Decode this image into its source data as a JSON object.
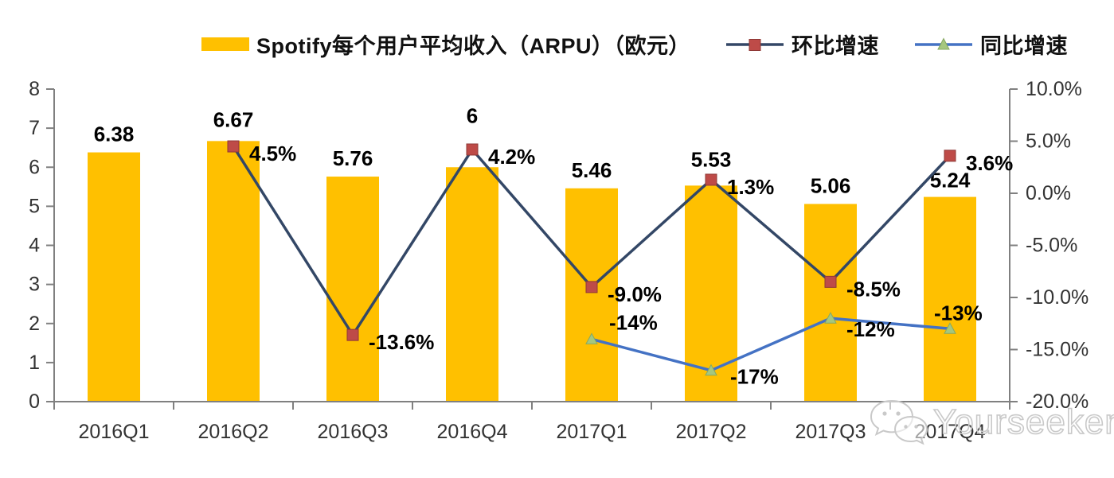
{
  "legend": {
    "bars_label": "Spotify每个用户平均收入（ARPU）（欧元）",
    "qoq_label": "环比增速",
    "yoy_label": "同比增速"
  },
  "watermark": {
    "text": "Yourseeker",
    "icon": "wechat-icon"
  },
  "colors": {
    "bar": "#FFC000",
    "qoq_line": "#334766",
    "qoq_marker": "#BE4B48",
    "yoy_line": "#4472C4",
    "yoy_marker": "#A5C77F",
    "axis": "#808080",
    "tick_text": "#333333",
    "data_label": "#000000"
  },
  "chart_data": {
    "type": "bar",
    "subtype": "combo-bar-line",
    "title": "",
    "categories": [
      "2016Q1",
      "2016Q2",
      "2016Q3",
      "2016Q4",
      "2017Q1",
      "2017Q2",
      "2017Q3",
      "2017Q4"
    ],
    "series": [
      {
        "name": "Spotify每个用户平均收入（ARPU）（欧元）",
        "type": "bar",
        "axis": "left",
        "color": "#FFC000",
        "values": [
          6.38,
          6.67,
          5.76,
          6,
          5.46,
          5.53,
          5.06,
          5.24
        ],
        "labels": [
          "6.38",
          "6.67",
          "5.76",
          "6",
          "5.46",
          "5.53",
          "5.06",
          "5.24"
        ]
      },
      {
        "name": "环比增速",
        "type": "line",
        "axis": "right",
        "marker": "square",
        "line_color": "#334766",
        "marker_color": "#BE4B48",
        "values": [
          null,
          4.5,
          -13.6,
          4.2,
          -9.0,
          1.3,
          -8.5,
          3.6
        ],
        "labels": [
          null,
          "4.5%",
          "-13.6%",
          "4.2%",
          "-9.0%",
          "1.3%",
          "-8.5%",
          "3.6%"
        ]
      },
      {
        "name": "同比增速",
        "type": "line",
        "axis": "right",
        "marker": "triangle",
        "line_color": "#4472C4",
        "marker_color": "#A5C77F",
        "values": [
          null,
          null,
          null,
          null,
          -14,
          -17,
          -12,
          -13
        ],
        "labels": [
          null,
          null,
          null,
          null,
          "-14%",
          "-17%",
          "-12%",
          "-13%"
        ]
      }
    ],
    "axes": {
      "left": {
        "min": 0,
        "max": 8,
        "step": 1,
        "tick_values": [
          0,
          1,
          2,
          3,
          4,
          5,
          6,
          7,
          8
        ],
        "tick_labels": [
          "0",
          "1",
          "2",
          "3",
          "4",
          "5",
          "6",
          "7",
          "8"
        ]
      },
      "right": {
        "min": -20,
        "max": 10,
        "step": 5,
        "tick_values": [
          10,
          5,
          0,
          -5,
          -10,
          -15,
          -20
        ],
        "tick_labels": [
          "10.0%",
          "5.0%",
          "0.0%",
          "-5.0%",
          "-10.0%",
          "-15.0%",
          "-20.0%"
        ]
      }
    },
    "grid": false,
    "legend_position": "top"
  }
}
